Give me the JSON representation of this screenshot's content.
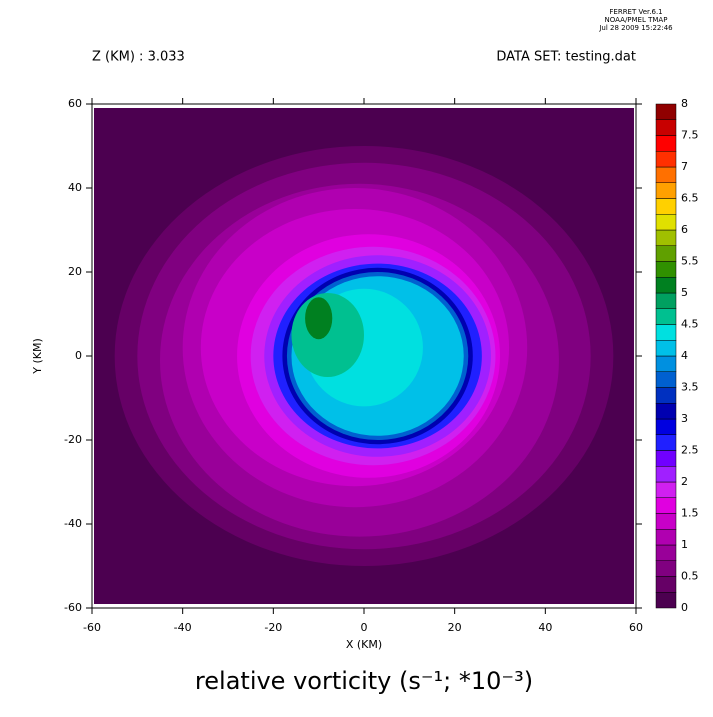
{
  "chart_data": {
    "type": "contour",
    "header": [
      "FERRET  Ver.6.1",
      "NOAA/PMEL TMAP",
      "Jul 28 2009 15:22:46"
    ],
    "title_left": "Z (KM) : 3.033",
    "title_right": "DATA SET: testing.dat",
    "x_label": "X (KM)",
    "y_label": "Y (KM)",
    "caption": "relative vorticity (s⁻¹; *10⁻³)",
    "xlim": [
      -60,
      60
    ],
    "ylim": [
      -60,
      60
    ],
    "xticks": [
      -60,
      -40,
      -20,
      0,
      20,
      40,
      60
    ],
    "yticks": [
      -60,
      -40,
      -20,
      0,
      20,
      40,
      60
    ],
    "levels": [
      0,
      0.25,
      0.5,
      0.75,
      1,
      1.25,
      1.5,
      1.75,
      2,
      2.25,
      2.5,
      2.75,
      3,
      3.25,
      3.5,
      3.75,
      4,
      4.25,
      4.5,
      4.75,
      5,
      5.25,
      5.5,
      5.75,
      6,
      6.25,
      6.5,
      6.75,
      7,
      7.25,
      7.5,
      7.75,
      8
    ],
    "colors": [
      "#4c0050",
      "#660066",
      "#800080",
      "#990099",
      "#b000b0",
      "#c800c8",
      "#e000e0",
      "#d020f0",
      "#a020ff",
      "#7000ff",
      "#2020ff",
      "#0000e0",
      "#0000b0",
      "#0030c0",
      "#0060d0",
      "#0090e0",
      "#00c0e8",
      "#00e0e0",
      "#00c090",
      "#00a060",
      "#008020",
      "#309000",
      "#60a000",
      "#a0c000",
      "#e0e000",
      "#ffd000",
      "#ffa000",
      "#ff7000",
      "#ff3000",
      "#ff0000",
      "#c80000",
      "#900000"
    ],
    "colorbar_ticks": [
      0,
      0.5,
      1,
      1.5,
      2,
      2.5,
      3,
      3.5,
      4,
      4.5,
      5,
      5.5,
      6,
      6.5,
      7,
      7.5,
      8
    ],
    "contours": [
      {
        "level": 0.25,
        "cx": 0,
        "cy": 0,
        "rx": 55,
        "ry": 50
      },
      {
        "level": 0.5,
        "cx": 0,
        "cy": 0,
        "rx": 50,
        "ry": 46
      },
      {
        "level": 0.75,
        "cx": -1,
        "cy": -1,
        "rx": 44,
        "ry": 42
      },
      {
        "level": 1,
        "cx": -2,
        "cy": 2,
        "rx": 38,
        "ry": 38
      },
      {
        "level": 1.25,
        "cx": -2,
        "cy": 2,
        "rx": 34,
        "ry": 33
      },
      {
        "level": 1.5,
        "cx": 1,
        "cy": 0,
        "rx": 29,
        "ry": 29
      },
      {
        "level": 1.75,
        "cx": 2,
        "cy": 0,
        "rx": 27,
        "ry": 26
      },
      {
        "level": 2,
        "cx": 3,
        "cy": 0,
        "rx": 25,
        "ry": 24
      },
      {
        "level": 2.5,
        "cx": 3,
        "cy": 0,
        "rx": 23,
        "ry": 22
      },
      {
        "level": 3,
        "cx": 3,
        "cy": 0,
        "rx": 21,
        "ry": 21
      },
      {
        "level": 3.5,
        "cx": 3,
        "cy": 0,
        "rx": 20,
        "ry": 20
      },
      {
        "level": 4,
        "cx": 3,
        "cy": 0,
        "rx": 19,
        "ry": 19
      },
      {
        "level": 4.25,
        "cx": 0,
        "cy": 2,
        "rx": 13,
        "ry": 14
      },
      {
        "level": 4.5,
        "cx": -8,
        "cy": 5,
        "rx": 8,
        "ry": 10
      },
      {
        "level": 5,
        "cx": -10,
        "cy": 9,
        "rx": 3,
        "ry": 5
      }
    ]
  }
}
